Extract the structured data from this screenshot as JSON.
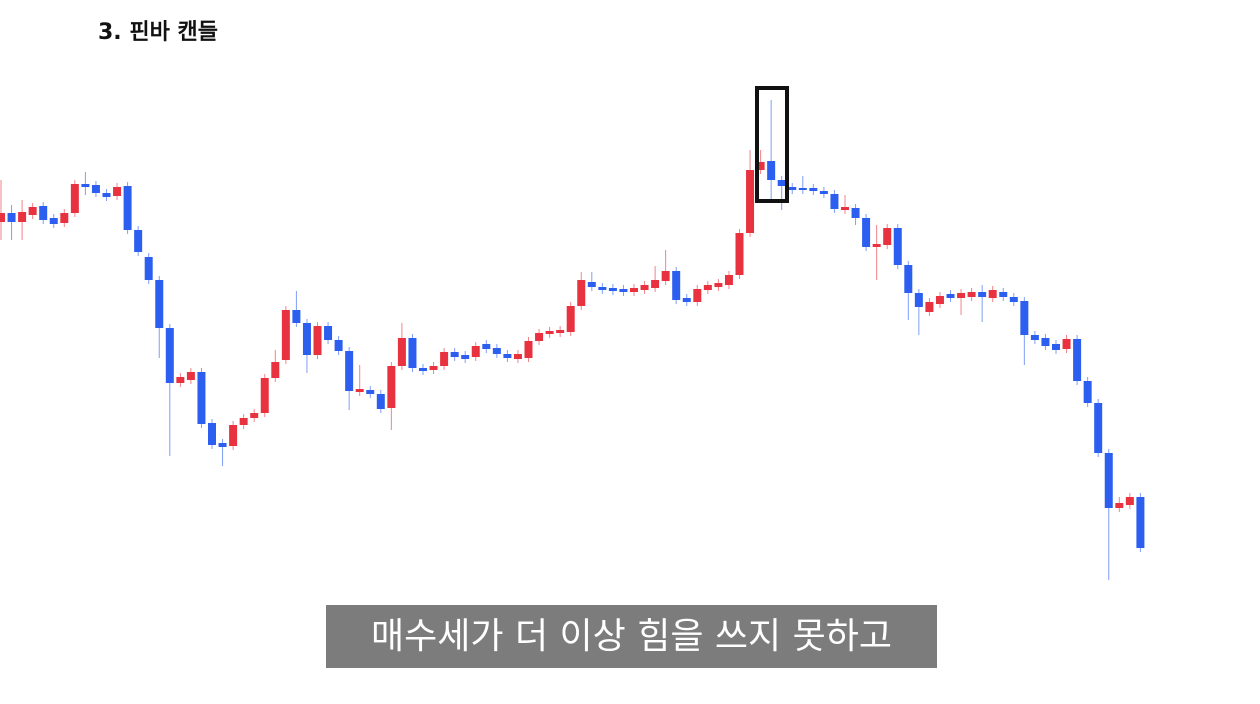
{
  "chart_data": {
    "type": "candlestick",
    "title": "3. 핀바 캔들",
    "up_color": "#e8323f",
    "down_color": "#2c5ff0",
    "ylim": [
      0,
      600
    ],
    "open": [
      378,
      387,
      378,
      385,
      394,
      382,
      377,
      387,
      416,
      415,
      407,
      404,
      414,
      370,
      343,
      320,
      272,
      217,
      220,
      228,
      177,
      157,
      154,
      175,
      182,
      187,
      222,
      240,
      290,
      277,
      245,
      274,
      260,
      249,
      208,
      210,
      206,
      192,
      234,
      262,
      232,
      230,
      234,
      248,
      245,
      243,
      256,
      252,
      246,
      241,
      242,
      259,
      266,
      267,
      268,
      294,
      318,
      313,
      312,
      311,
      308,
      310,
      312,
      319,
      329,
      302,
      298,
      310,
      313,
      315,
      325,
      367,
      430,
      439,
      420,
      413,
      412,
      412,
      409,
      406,
      390,
      392,
      382,
      353,
      355,
      372,
      335,
      307,
      288,
      296,
      306,
      302,
      303,
      308,
      302,
      308,
      303,
      299,
      265,
      262,
      256,
      251,
      261,
      219,
      197,
      147,
      92,
      95,
      103
    ],
    "high": [
      420,
      395,
      400,
      397,
      398,
      386,
      391,
      420,
      428,
      419,
      411,
      417,
      418,
      374,
      347,
      324,
      276,
      227,
      232,
      232,
      181,
      161,
      179,
      186,
      191,
      226,
      250,
      294,
      309,
      281,
      278,
      278,
      264,
      253,
      235,
      214,
      210,
      238,
      277,
      266,
      236,
      238,
      252,
      252,
      249,
      258,
      260,
      256,
      250,
      250,
      263,
      271,
      273,
      274,
      298,
      328,
      328,
      317,
      316,
      315,
      316,
      319,
      334,
      350,
      333,
      306,
      315,
      319,
      321,
      329,
      371,
      450,
      450,
      500,
      424,
      417,
      424,
      416,
      413,
      410,
      405,
      396,
      386,
      375,
      376,
      376,
      339,
      311,
      302,
      308,
      310,
      311,
      312,
      315,
      314,
      312,
      307,
      303,
      269,
      266,
      260,
      265,
      265,
      223,
      201,
      151,
      103,
      107,
      107
    ],
    "low": [
      360,
      360,
      360,
      381,
      376,
      372,
      373,
      383,
      405,
      403,
      399,
      400,
      366,
      344,
      316,
      242,
      144,
      213,
      216,
      172,
      151,
      134,
      150,
      171,
      178,
      183,
      218,
      236,
      273,
      227,
      241,
      256,
      245,
      190,
      204,
      202,
      187,
      170,
      230,
      228,
      225,
      226,
      230,
      239,
      237,
      239,
      247,
      242,
      238,
      237,
      238,
      255,
      262,
      263,
      264,
      290,
      309,
      306,
      305,
      304,
      304,
      306,
      308,
      315,
      296,
      294,
      294,
      306,
      309,
      311,
      321,
      363,
      426,
      400,
      390,
      406,
      406,
      405,
      402,
      387,
      386,
      375,
      349,
      320,
      351,
      331,
      280,
      265,
      284,
      292,
      298,
      285,
      299,
      278,
      298,
      299,
      294,
      235,
      256,
      250,
      246,
      247,
      215,
      193,
      143,
      20,
      88,
      91,
      48
    ],
    "close": [
      387,
      378,
      388,
      393,
      380,
      376,
      387,
      416,
      413,
      407,
      403,
      413,
      370,
      348,
      320,
      272,
      217,
      223,
      228,
      176,
      155,
      153,
      175,
      182,
      187,
      222,
      238,
      290,
      277,
      245,
      274,
      260,
      249,
      209,
      211,
      206,
      191,
      234,
      262,
      232,
      229,
      234,
      248,
      243,
      241,
      254,
      251,
      246,
      242,
      246,
      259,
      267,
      269,
      270,
      294,
      320,
      313,
      310,
      309,
      308,
      312,
      315,
      320,
      329,
      300,
      298,
      311,
      315,
      317,
      325,
      367,
      430,
      438,
      420,
      414,
      410,
      410,
      409,
      406,
      391,
      393,
      382,
      353,
      356,
      372,
      335,
      307,
      293,
      298,
      304,
      302,
      307,
      308,
      303,
      310,
      303,
      298,
      265,
      260,
      254,
      250,
      261,
      219,
      197,
      147,
      92,
      97,
      103,
      52
    ]
  },
  "subtitle": "매수세가 더 이상 힘을 쓰지 못하고"
}
